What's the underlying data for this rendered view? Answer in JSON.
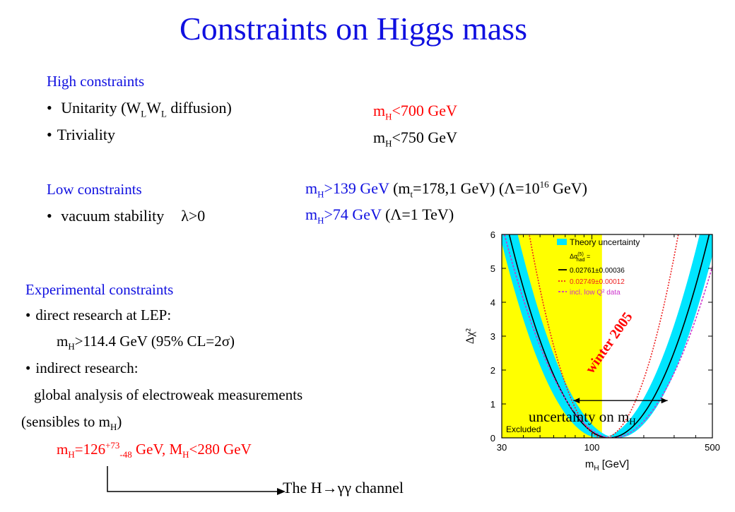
{
  "title": "Constraints on Higgs mass",
  "high": {
    "heading": "High constraints",
    "unitarity_pre": "Unitarity (W",
    "unitarity_sub1": "L",
    "unitarity_mid": "W",
    "unitarity_sub2": "L",
    "unitarity_post": " diffusion)",
    "triviality": "Triviality",
    "res1_pre": "m",
    "res1_sub": "H",
    "res1_post": "<700 GeV",
    "res2_pre": "m",
    "res2_sub": "H",
    "res2_post": "<750 GeV"
  },
  "low": {
    "heading": "Low constraints",
    "vacuum": "vacuum stability",
    "lambda": "λ>0",
    "r1_m": "m",
    "r1_msub": "H",
    "r1_val": ">139 GeV",
    "r1_mt_pre": " (m",
    "r1_mt_sub": "t",
    "r1_mt_post": "=178,1 GeV) (Λ=10",
    "r1_exp": "16",
    "r1_end": " GeV)",
    "r2_m": "m",
    "r2_msub": "H",
    "r2_val": ">74 GeV",
    "r2_end": " (Λ=1 TeV)"
  },
  "exp": {
    "heading": "Experimental constraints",
    "direct": "direct research at LEP:",
    "d_m": "m",
    "d_sub": "H",
    "d_val": ">114.4 GeV (95% CL=2σ)",
    "indirect": "indirect research:",
    "global": "global analysis of electroweak measurements",
    "sens_pre": "(sensibles to m",
    "sens_sub": "H",
    "sens_post": ")",
    "res_m": "m",
    "res_sub": "H",
    "res_eq": "=126",
    "res_sup": "+73",
    "res_sub2": "-48",
    "res_mid": " GeV, M",
    "res_sub3": "H",
    "res_end": "<280 GeV",
    "channel": "The H→γγ channel"
  },
  "chart_data": {
    "type": "line",
    "xlabel": "m",
    "xlabel_sub": "H",
    "xlabel_unit": " [GeV]",
    "ylabel": "Δχ²",
    "x_scale": "log",
    "xlim": [
      30,
      500
    ],
    "ylim": [
      0,
      6
    ],
    "x_ticks": [
      "30",
      "100",
      "500"
    ],
    "y_ticks": [
      "0",
      "1",
      "2",
      "3",
      "4",
      "5",
      "6"
    ],
    "excluded_label": "Excluded",
    "excluded_below": 114.4,
    "legend": {
      "band": "Theory uncertainty",
      "alpha_label": "Δα",
      "alpha_sup": "(5)",
      "alpha_sub": "had",
      "alpha_eq": " =",
      "entries": [
        "0.02761±0.00036",
        "0.02749±0.00012",
        "incl. low Q² data"
      ]
    },
    "annotation_winter": "winter 2005",
    "annotation_unc_pre": "uncertainty on m",
    "annotation_unc_sub": "H",
    "minimum_x": 126,
    "colors": {
      "excluded": "#ffff00",
      "band": "#00e5ff",
      "black": "#000000",
      "red": "#ee2222",
      "magenta": "#cc33cc",
      "annot": "#ff0000"
    }
  }
}
